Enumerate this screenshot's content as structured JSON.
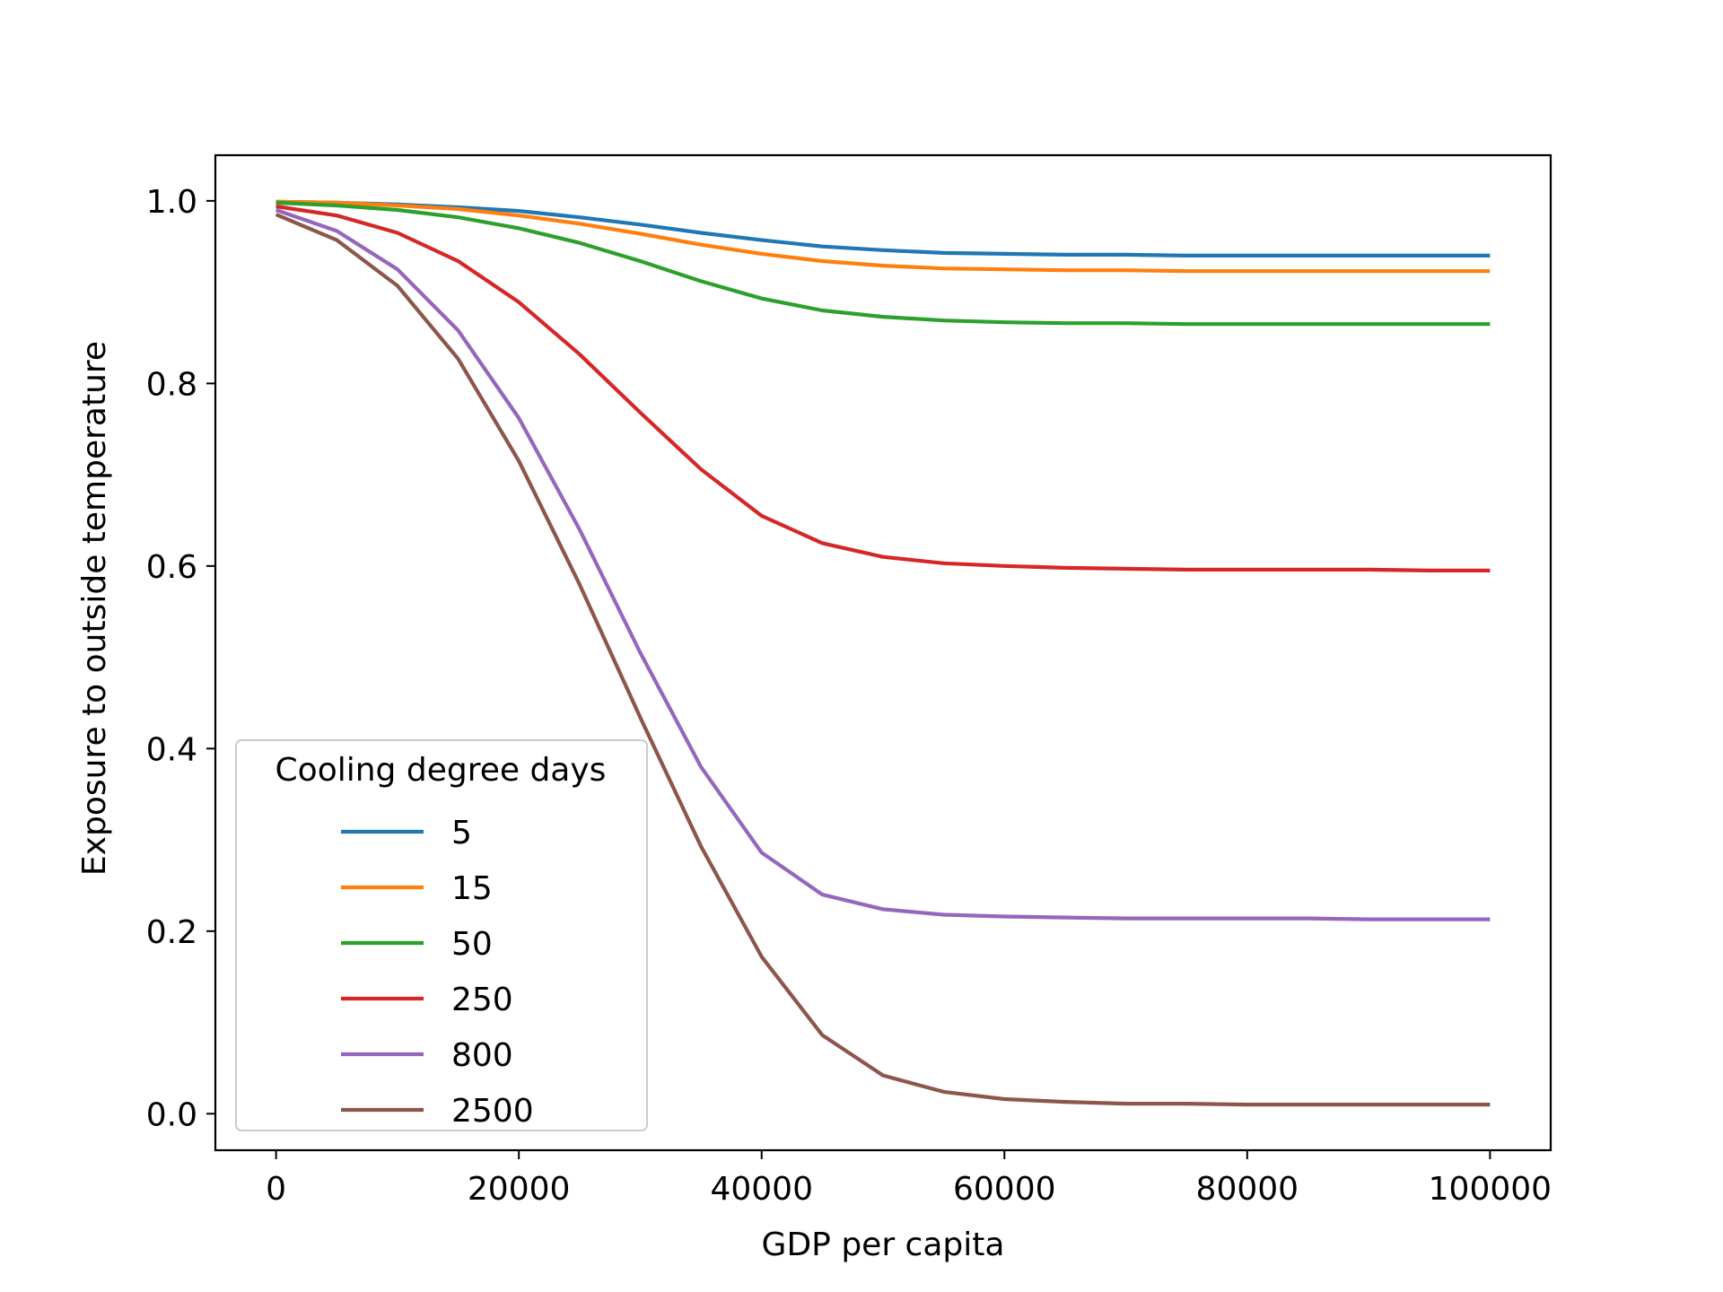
{
  "chart_data": {
    "type": "line",
    "xlabel": "GDP per capita",
    "ylabel": "Exposure to outside temperature",
    "xlim": [
      -5000,
      105000
    ],
    "ylim": [
      -0.04,
      1.05
    ],
    "xticks": [
      0,
      20000,
      40000,
      60000,
      80000,
      100000
    ],
    "xtick_labels": [
      "0",
      "20000",
      "40000",
      "60000",
      "80000",
      "100000"
    ],
    "yticks": [
      0.0,
      0.2,
      0.4,
      0.6,
      0.8,
      1.0
    ],
    "ytick_labels": [
      "0.0",
      "0.2",
      "0.4",
      "0.6",
      "0.8",
      "1.0"
    ],
    "grid": false,
    "legend": {
      "title": "Cooling degree days",
      "placement": "lower-left"
    },
    "x": [
      0,
      5000,
      10000,
      15000,
      20000,
      25000,
      30000,
      35000,
      40000,
      45000,
      50000,
      55000,
      60000,
      65000,
      70000,
      75000,
      80000,
      85000,
      90000,
      95000,
      100000
    ],
    "series": [
      {
        "name": "5",
        "color": "#1f77b4",
        "values": [
          0.999,
          0.998,
          0.996,
          0.993,
          0.989,
          0.982,
          0.974,
          0.965,
          0.957,
          0.95,
          0.946,
          0.943,
          0.942,
          0.941,
          0.941,
          0.94,
          0.94,
          0.94,
          0.94,
          0.94,
          0.94
        ]
      },
      {
        "name": "15",
        "color": "#ff7f0e",
        "values": [
          0.999,
          0.998,
          0.995,
          0.991,
          0.984,
          0.975,
          0.964,
          0.952,
          0.942,
          0.934,
          0.929,
          0.926,
          0.925,
          0.924,
          0.924,
          0.923,
          0.923,
          0.923,
          0.923,
          0.923,
          0.923
        ]
      },
      {
        "name": "50",
        "color": "#2ca02c",
        "values": [
          0.998,
          0.995,
          0.99,
          0.982,
          0.97,
          0.954,
          0.934,
          0.912,
          0.893,
          0.88,
          0.873,
          0.869,
          0.867,
          0.866,
          0.866,
          0.865,
          0.865,
          0.865,
          0.865,
          0.865,
          0.865
        ]
      },
      {
        "name": "250",
        "color": "#d62728",
        "values": [
          0.994,
          0.984,
          0.965,
          0.934,
          0.889,
          0.832,
          0.768,
          0.706,
          0.655,
          0.625,
          0.61,
          0.603,
          0.6,
          0.598,
          0.597,
          0.596,
          0.596,
          0.596,
          0.596,
          0.595,
          0.595
        ]
      },
      {
        "name": "800",
        "color": "#9467bd",
        "values": [
          0.99,
          0.967,
          0.925,
          0.858,
          0.762,
          0.64,
          0.505,
          0.38,
          0.286,
          0.24,
          0.224,
          0.218,
          0.216,
          0.215,
          0.214,
          0.214,
          0.214,
          0.214,
          0.213,
          0.213,
          0.213
        ]
      },
      {
        "name": "2500",
        "color": "#8c564b",
        "values": [
          0.985,
          0.957,
          0.907,
          0.827,
          0.715,
          0.58,
          0.434,
          0.293,
          0.172,
          0.086,
          0.042,
          0.024,
          0.016,
          0.013,
          0.011,
          0.011,
          0.01,
          0.01,
          0.01,
          0.01,
          0.01
        ]
      }
    ]
  }
}
